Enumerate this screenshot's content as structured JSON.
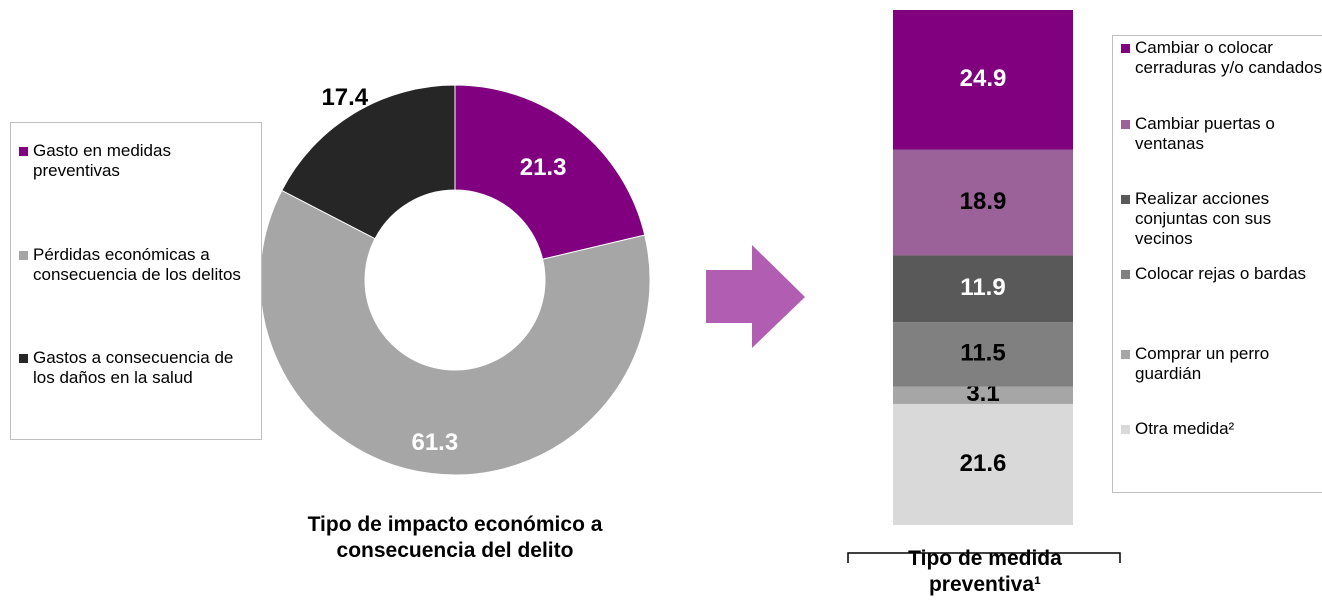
{
  "chart_data": [
    {
      "type": "donut",
      "title": "Tipo de impacto económico a consecuencia del delito",
      "categories": [
        "Gasto en medidas preventivas",
        "Pérdidas económicas a consecuencia de los delitos",
        "Gastos a consecuencia de los daños en la salud"
      ],
      "values": [
        21.3,
        61.3,
        17.4
      ],
      "colors": [
        "#800080",
        "#a6a6a6",
        "#262626"
      ]
    },
    {
      "type": "stacked_bar",
      "title": "Tipo de medida preventiva¹",
      "series": [
        {
          "name": "Cambiar o colocar cerraduras y/o candados",
          "color": "#800080",
          "values": [
            24.9
          ]
        },
        {
          "name": "Cambiar puertas o ventanas",
          "color": "#9b6199",
          "values": [
            18.9
          ]
        },
        {
          "name": "Realizar acciones conjuntas con sus vecinos",
          "color": "#595959",
          "values": [
            11.9
          ]
        },
        {
          "name": "Colocar rejas o bardas",
          "color": "#808080",
          "values": [
            11.5
          ]
        },
        {
          "name": "Comprar un perro guardián",
          "color": "#a6a6a6",
          "values": [
            3.1
          ]
        },
        {
          "name": "Otra medida²",
          "color": "#d9d9d9",
          "values": [
            21.6
          ]
        }
      ]
    }
  ]
}
